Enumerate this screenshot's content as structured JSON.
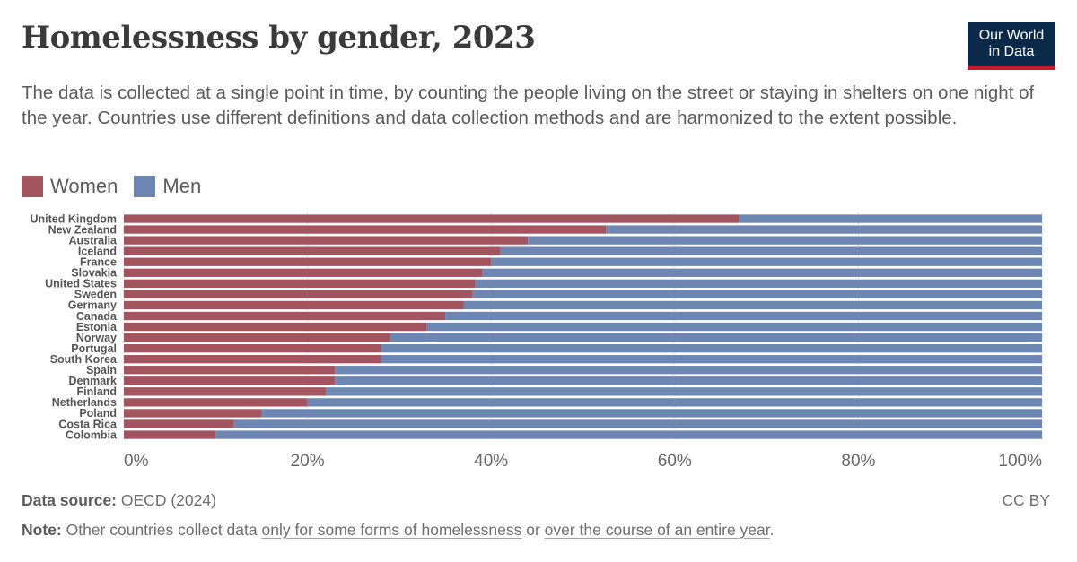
{
  "title": "Homelessness by gender, 2023",
  "subtitle": "The data is collected at a single point in time, by counting the people living on the street or staying in shelters on one night of the year. Countries use different definitions and data collection methods and are harmonized to the extent possible.",
  "logo": {
    "line1": "Our World",
    "line2": "in Data"
  },
  "footer": {
    "source_label": "Data source:",
    "source_value": "OECD (2024)",
    "license": "CC BY",
    "note_label": "Note:",
    "note_text_1": "Other countries collect data",
    "note_link_1": "only for some forms of homelessness",
    "note_text_2": "or",
    "note_link_2": "over the course of an entire year",
    "note_text_3": "."
  },
  "colors": {
    "women": "#a2555e",
    "men": "#6d86b2",
    "axis": "#666666"
  },
  "chart_data": {
    "type": "bar",
    "orientation": "horizontal",
    "stacked": true,
    "relative": true,
    "categories": [
      "United Kingdom",
      "New Zealand",
      "Australia",
      "Iceland",
      "France",
      "Slovakia",
      "United States",
      "Sweden",
      "Germany",
      "Canada",
      "Estonia",
      "Norway",
      "Portugal",
      "South Korea",
      "Spain",
      "Denmark",
      "Finland",
      "Netherlands",
      "Poland",
      "Costa Rica",
      "Colombia"
    ],
    "series": [
      {
        "name": "Women",
        "values": [
          67,
          52.5,
          44,
          41,
          40,
          39,
          38.3,
          38,
          37,
          35,
          33,
          29,
          28,
          28,
          23,
          23,
          22,
          20,
          15,
          12,
          10
        ]
      },
      {
        "name": "Men",
        "values": [
          33,
          47.5,
          56,
          59,
          60,
          61,
          61.7,
          62,
          63,
          65,
          67,
          71,
          72,
          72,
          77,
          77,
          78,
          80,
          85,
          88,
          90
        ]
      }
    ],
    "xlim": [
      0,
      100
    ],
    "xticks": [
      "0%",
      "20%",
      "40%",
      "60%",
      "80%",
      "100%"
    ],
    "legend": "top-left"
  }
}
